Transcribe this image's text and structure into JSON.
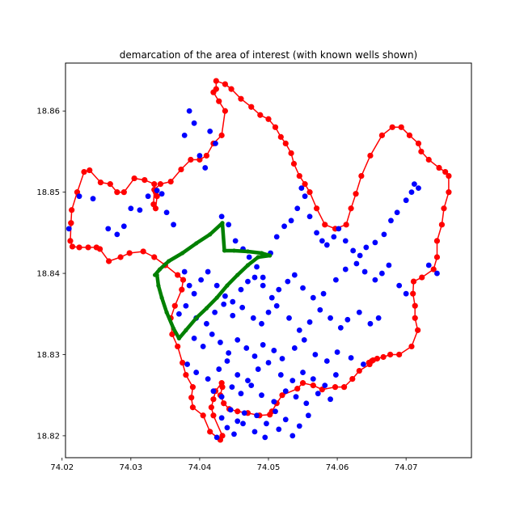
{
  "chart_data": {
    "type": "scatter",
    "title": "demarcation of the area of interest (with known wells shown)",
    "xlabel": "",
    "ylabel": "",
    "xlim": [
      74.0205,
      74.0795
    ],
    "ylim": [
      18.8173,
      18.8659
    ],
    "xticks": [
      "74.02",
      "74.03",
      "74.04",
      "74.05",
      "74.06",
      "74.07"
    ],
    "yticks": [
      "18.82",
      "18.83",
      "18.84",
      "18.85",
      "18.86"
    ],
    "grid": false,
    "colors": {
      "boundary": "#ff0000",
      "wells": "#0000ff",
      "area_of_interest": "#008000"
    },
    "series": [
      {
        "kind": "boundary",
        "color": "#ff0000",
        "x": [
          74.0213,
          74.0214,
          74.0222,
          74.0232,
          74.024,
          74.0256,
          74.027,
          74.028,
          74.029,
          74.0305,
          74.032,
          74.0334,
          74.0336,
          74.0338,
          74.0336,
          74.0333,
          74.0334,
          74.0343,
          74.0358,
          74.0373,
          74.0387,
          74.04,
          74.041,
          74.042,
          74.0432,
          74.0437,
          74.0428,
          74.042,
          74.0424,
          74.0424,
          74.0437,
          74.0446,
          74.046,
          74.0475,
          74.0488,
          74.05,
          74.051,
          74.0518,
          74.0525,
          74.0533,
          74.0537,
          74.0545,
          74.0553,
          74.056,
          74.057,
          74.0582,
          74.0597,
          74.0613,
          74.062,
          74.0627,
          74.0635,
          74.0648,
          74.0665,
          74.068,
          74.0693,
          74.0705,
          74.0718,
          74.0722,
          74.0733,
          74.0748,
          74.0757,
          74.0762,
          74.0762,
          74.0755,
          74.0752,
          74.0745,
          74.0745,
          74.074,
          74.0723,
          74.0711,
          74.071,
          74.0713,
          74.0713,
          74.0717,
          74.0708,
          74.069,
          74.0677,
          74.0667,
          74.0658,
          74.0652,
          74.065,
          74.0647,
          74.0646,
          74.0647,
          74.0632,
          74.0622,
          74.061,
          74.0597,
          74.0578,
          74.0565,
          74.055,
          74.0542,
          74.052,
          74.0512,
          74.0505,
          74.0502,
          74.0487,
          74.047,
          74.0455,
          74.0443,
          74.0435,
          74.043,
          74.0433,
          74.0432,
          74.0423,
          74.042,
          74.0417,
          74.042,
          74.0433,
          74.043,
          74.0415,
          74.0405,
          74.039,
          74.0388,
          74.039,
          74.038,
          74.0375,
          74.0368,
          74.036,
          74.0358,
          74.0364,
          74.0374,
          74.0376,
          74.0368,
          74.035,
          74.0334,
          74.0318,
          74.0298,
          74.0285,
          74.0268,
          74.0255,
          74.025,
          74.0238,
          74.0225,
          74.0215,
          74.0212,
          74.0213
        ],
        "y": [
          18.8462,
          18.8478,
          18.85,
          18.8525,
          18.8527,
          18.8512,
          18.851,
          18.85,
          18.85,
          18.8517,
          18.8515,
          18.851,
          18.85,
          18.8495,
          18.848,
          18.8485,
          18.8503,
          18.851,
          18.8513,
          18.8528,
          18.854,
          18.854,
          18.8545,
          18.856,
          18.857,
          18.86,
          18.8612,
          18.8623,
          18.8627,
          18.8637,
          18.8633,
          18.8627,
          18.8615,
          18.8605,
          18.8595,
          18.859,
          18.858,
          18.8568,
          18.856,
          18.8548,
          18.8535,
          18.852,
          18.851,
          18.85,
          18.848,
          18.846,
          18.8455,
          18.846,
          18.848,
          18.8498,
          18.852,
          18.8545,
          18.857,
          18.858,
          18.858,
          18.857,
          18.856,
          18.855,
          18.854,
          18.853,
          18.8525,
          18.852,
          18.85,
          18.848,
          18.846,
          18.844,
          18.842,
          18.8405,
          18.8395,
          18.839,
          18.8375,
          18.836,
          18.8345,
          18.833,
          18.831,
          18.83,
          18.83,
          18.8297,
          18.8295,
          18.8293,
          18.8292,
          18.829,
          18.829,
          18.8288,
          18.828,
          18.827,
          18.826,
          18.826,
          18.8257,
          18.8262,
          18.8265,
          18.8258,
          18.825,
          18.824,
          18.823,
          18.8226,
          18.8225,
          18.8228,
          18.823,
          18.8233,
          18.824,
          18.825,
          18.826,
          18.8265,
          18.8255,
          18.8245,
          18.8235,
          18.8225,
          18.82,
          18.8195,
          18.8205,
          18.8225,
          18.8235,
          18.8247,
          18.826,
          18.8275,
          18.829,
          18.831,
          18.8325,
          18.8345,
          18.836,
          18.838,
          18.8392,
          18.8398,
          18.841,
          18.842,
          18.8427,
          18.8425,
          18.842,
          18.8415,
          18.843,
          18.8432,
          18.8432,
          18.8432,
          18.8433,
          18.844,
          18.8462
        ]
      },
      {
        "kind": "wells",
        "color": "#0000ff",
        "x": [
          74.021,
          74.0225,
          74.0245,
          74.0267,
          74.028,
          74.029,
          74.03,
          74.0313,
          74.0325,
          74.0338,
          74.0345,
          74.0352,
          74.0362,
          74.0378,
          74.0385,
          74.0392,
          74.04,
          74.0408,
          74.0415,
          74.0423,
          74.0432,
          74.0442,
          74.0452,
          74.0463,
          74.0472,
          74.0483,
          74.0492,
          74.0503,
          74.0512,
          74.0523,
          74.0533,
          74.0542,
          74.0548,
          74.0553,
          74.056,
          74.057,
          74.0578,
          74.0585,
          74.0595,
          74.0602,
          74.0612,
          74.0623,
          74.0633,
          74.0642,
          74.0655,
          74.0668,
          74.0678,
          74.0687,
          74.07,
          74.0708,
          74.0712,
          74.0718,
          74.0733,
          74.0745,
          74.0378,
          74.0385,
          74.0392,
          74.0402,
          74.0412,
          74.0425,
          74.0437,
          74.0448,
          74.046,
          74.047,
          74.048,
          74.0492,
          74.0505,
          74.0515,
          74.0528,
          74.0538,
          74.055,
          74.0565,
          74.058,
          74.0598,
          74.0612,
          74.0628,
          74.064,
          74.0655,
          74.0665,
          74.0675,
          74.069,
          74.07,
          74.037,
          74.038,
          74.0395,
          74.041,
          74.0422,
          74.0435,
          74.0448,
          74.0462,
          74.0478,
          74.049,
          74.05,
          74.0512,
          74.053,
          74.0545,
          74.056,
          74.0575,
          74.059,
          74.0605,
          74.0615,
          74.0632,
          74.0648,
          74.066,
          74.0392,
          74.0405,
          74.0418,
          74.043,
          74.0442,
          74.0455,
          74.0468,
          74.048,
          74.0492,
          74.0508,
          74.052,
          74.0538,
          74.0552,
          74.0568,
          74.0585,
          74.06,
          74.062,
          74.0638,
          74.0382,
          74.0395,
          74.0412,
          74.0428,
          74.044,
          74.0455,
          74.047,
          74.0485,
          74.05,
          74.0518,
          74.0535,
          74.055,
          74.0565,
          74.0582,
          74.0598,
          74.042,
          74.0432,
          74.0447,
          74.046,
          74.0475,
          74.049,
          74.0508,
          74.0525,
          74.054,
          74.0555,
          74.0572,
          74.059,
          74.0432,
          74.0445,
          74.0455,
          74.0465,
          74.0483,
          74.0497,
          74.051,
          74.0525,
          74.0545,
          74.0558,
          74.0425,
          74.044,
          74.045,
          74.0463,
          74.048,
          74.0495,
          74.0515,
          74.0535
        ],
        "y": [
          18.8455,
          18.8495,
          18.8492,
          18.8455,
          18.8448,
          18.8458,
          18.848,
          18.8478,
          18.8495,
          18.8502,
          18.8498,
          18.8475,
          18.846,
          18.857,
          18.86,
          18.8585,
          18.8545,
          18.853,
          18.8575,
          18.856,
          18.847,
          18.846,
          18.844,
          18.843,
          18.842,
          18.8408,
          18.8395,
          18.8425,
          18.8445,
          18.8458,
          18.8465,
          18.848,
          18.8505,
          18.8495,
          18.847,
          18.845,
          18.844,
          18.8435,
          18.8445,
          18.8455,
          18.844,
          18.8428,
          18.8422,
          18.8432,
          18.8438,
          18.8448,
          18.8465,
          18.8475,
          18.849,
          18.85,
          18.851,
          18.8505,
          18.841,
          18.84,
          18.8402,
          18.8385,
          18.8375,
          18.8392,
          18.8402,
          18.8385,
          18.8372,
          18.8365,
          18.838,
          18.839,
          18.8395,
          18.8385,
          18.837,
          18.838,
          18.839,
          18.8398,
          18.8382,
          18.837,
          18.8375,
          18.8392,
          18.8405,
          18.8412,
          18.8402,
          18.8392,
          18.84,
          18.841,
          18.8385,
          18.8375,
          18.835,
          18.836,
          18.8345,
          18.8338,
          18.8352,
          18.8362,
          18.8348,
          18.8358,
          18.8345,
          18.8338,
          18.8352,
          18.836,
          18.8345,
          18.833,
          18.834,
          18.8355,
          18.8345,
          18.8333,
          18.8343,
          18.8352,
          18.8338,
          18.8345,
          18.832,
          18.831,
          18.8325,
          18.8315,
          18.8302,
          18.8318,
          18.8308,
          18.8298,
          18.8312,
          18.8305,
          18.8295,
          18.8308,
          18.8318,
          18.83,
          18.8292,
          18.8303,
          18.8296,
          18.8288,
          18.8288,
          18.8278,
          18.827,
          18.8282,
          18.8292,
          18.8275,
          18.8268,
          18.8282,
          18.829,
          18.8275,
          18.8268,
          18.8278,
          18.827,
          18.8262,
          18.8275,
          18.8255,
          18.8248,
          18.826,
          18.8252,
          18.8262,
          18.825,
          18.8242,
          18.8255,
          18.8248,
          18.824,
          18.8252,
          18.8245,
          18.8222,
          18.8232,
          18.8218,
          18.8228,
          18.8225,
          18.8215,
          18.823,
          18.822,
          18.8212,
          18.8225,
          18.8198,
          18.821,
          18.8202,
          18.8215,
          18.8205,
          18.8198,
          18.8208,
          18.82
        ]
      },
      {
        "kind": "area_of_interest",
        "color": "#008000",
        "x": [
          74.0433,
          74.0436,
          74.045,
          74.047,
          74.049,
          74.0502,
          74.0485,
          74.047,
          74.0455,
          74.044,
          74.0425,
          74.041,
          74.0395,
          74.038,
          74.037,
          74.0362,
          74.0352,
          74.0345,
          74.034,
          74.0338,
          74.0335,
          74.0342,
          74.0355,
          74.0375,
          74.0395,
          74.0415,
          74.0433
        ],
        "y": [
          18.8462,
          18.8428,
          18.8428,
          18.8427,
          18.8425,
          18.8422,
          18.842,
          18.841,
          18.8398,
          18.8385,
          18.837,
          18.8357,
          18.8345,
          18.833,
          18.832,
          18.8332,
          18.8352,
          18.837,
          18.8385,
          18.8398,
          18.8398,
          18.8405,
          18.8415,
          18.8425,
          18.8437,
          18.8448,
          18.8462
        ]
      }
    ]
  }
}
